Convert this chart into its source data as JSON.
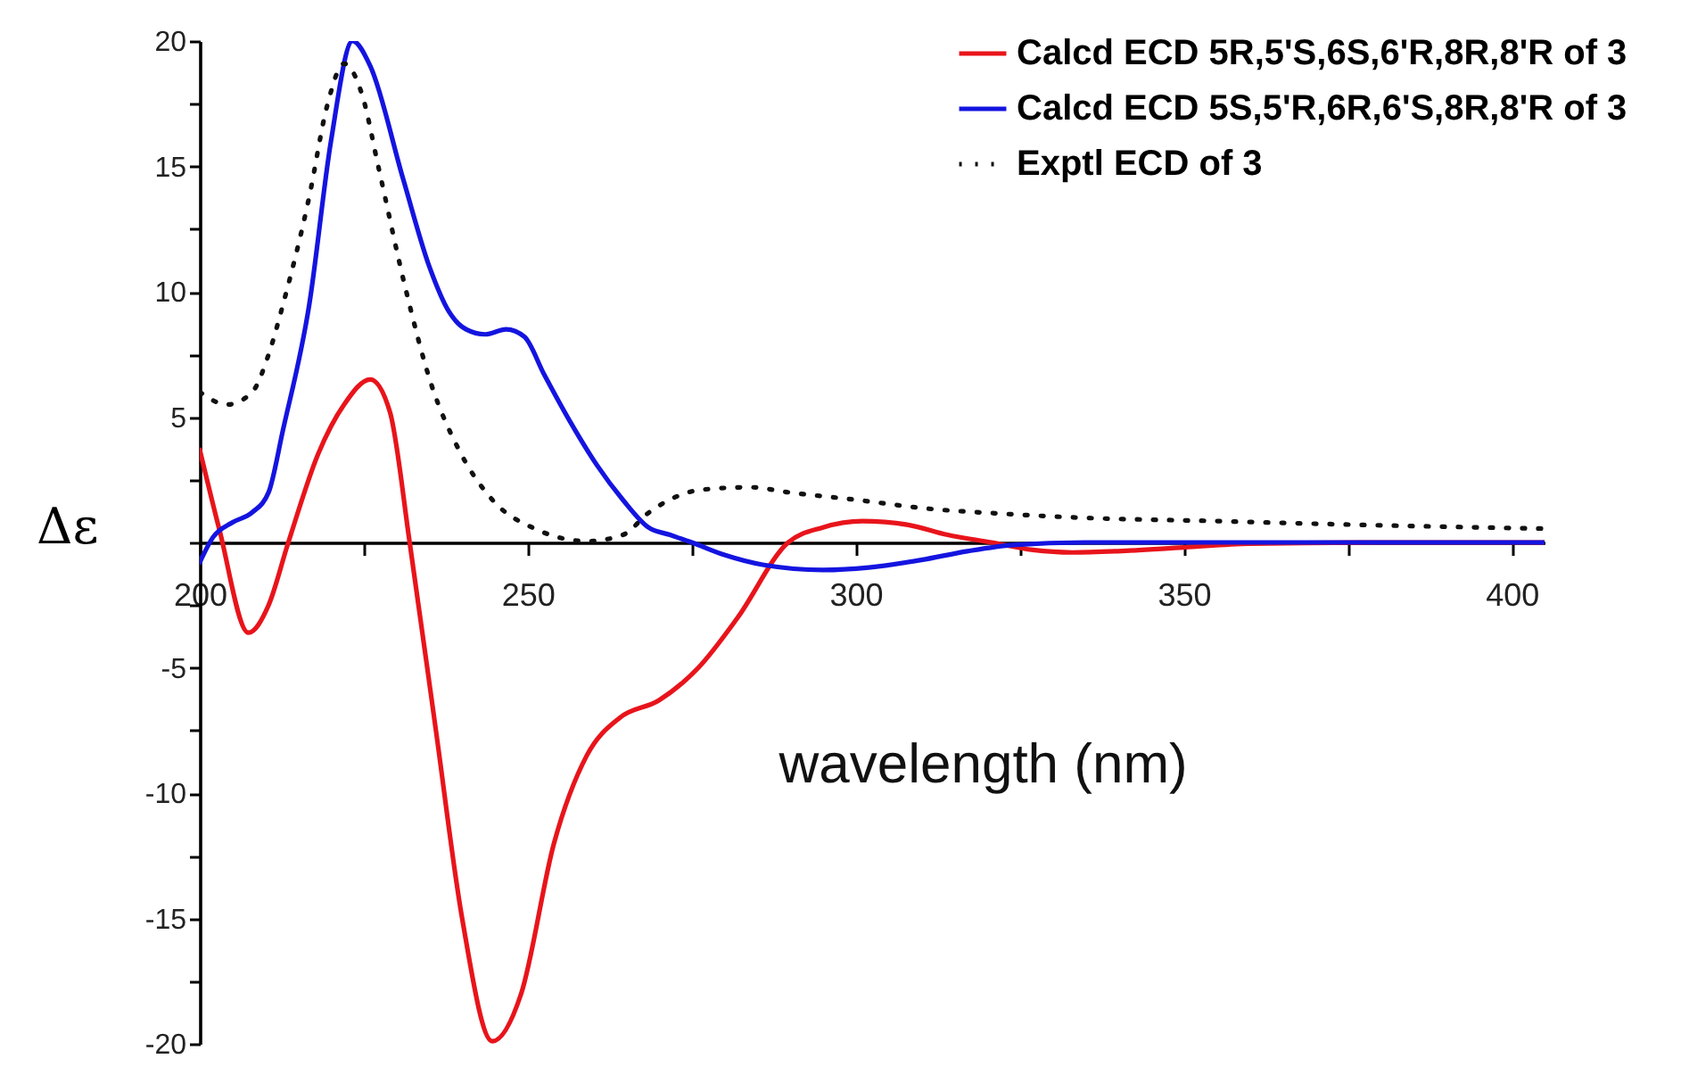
{
  "chart_data": {
    "type": "line",
    "xlabel": "wavelength (nm)",
    "ylabel": "Δε",
    "xlim": [
      200,
      405
    ],
    "ylim": [
      -20,
      20
    ],
    "xticks": [
      200,
      {
        "value": 225,
        "label": null
      },
      250,
      {
        "value": 275,
        "label": null
      },
      300,
      {
        "value": 325,
        "label": null
      },
      350,
      {
        "value": 375,
        "label": null
      },
      400
    ],
    "yticks": [
      -20,
      {
        "value": -17.5,
        "label": null
      },
      -15,
      {
        "value": -12.5,
        "label": null
      },
      -10,
      {
        "value": -7.5,
        "label": null
      },
      -5,
      {
        "value": -2.5,
        "label": null
      },
      {
        "value": 0,
        "label": null
      },
      {
        "value": 2.5,
        "label": null
      },
      5,
      {
        "value": 7.5,
        "label": null
      },
      10,
      {
        "value": 12.5,
        "label": null
      },
      15,
      {
        "value": 17.5,
        "label": null
      },
      20
    ],
    "legend": "top right",
    "grid": false,
    "marker": "none",
    "series": [
      {
        "name": "Calcd ECD 5R,5'S,6S,6'R,8R,8'R of 3",
        "color": "#e8141b",
        "line_style": "solid",
        "x": [
          200,
          203,
          207.4,
          210.5,
          213.5,
          218,
          222,
          226,
          229,
          232,
          236,
          240,
          244.6,
          249,
          254,
          259,
          264,
          270,
          276,
          282,
          289.7,
          295,
          301,
          308,
          314,
          320.7,
          327,
          333,
          340,
          350,
          360,
          380,
          405
        ],
        "values": [
          3.7,
          0.5,
          -3.6,
          -2.5,
          0,
          3.5,
          5.5,
          6.5,
          5.2,
          0,
          -7.5,
          -15,
          -19.9,
          -18,
          -12,
          -8.5,
          -7,
          -6.3,
          -5,
          -3,
          0,
          0.6,
          0.85,
          0.7,
          0.3,
          0,
          -0.3,
          -0.4,
          -0.35,
          -0.2,
          -0.05,
          0,
          0
        ]
      },
      {
        "name": "Calcd ECD 5S,5'R,6R,6'S,8R,8'R of 3",
        "color": "#1414e0",
        "line_style": "solid",
        "x": [
          200,
          202,
          205,
          208,
          210.5,
          212.7,
          216.7,
          220,
          223.3,
          226,
          231,
          235,
          238,
          240.6,
          243.5,
          246.7,
          249.5,
          252.5,
          256.5,
          260.5,
          264.5,
          268.4,
          271.7,
          275,
          280,
          286,
          295,
          302,
          310,
          317,
          324,
          335,
          350,
          375,
          405
        ],
        "values": [
          -0.8,
          0.2,
          0.8,
          1.2,
          2,
          4.5,
          9.5,
          16,
          20,
          19,
          14.5,
          11,
          9.2,
          8.5,
          8.3,
          8.5,
          8.2,
          6.7,
          4.8,
          3.1,
          1.7,
          0.6,
          0.3,
          0,
          -0.5,
          -0.9,
          -1.1,
          -1,
          -0.7,
          -0.35,
          -0.1,
          0,
          0,
          0,
          0
        ]
      },
      {
        "name": "Exptl ECD of 3",
        "color": "#111111",
        "line_style": "dotted",
        "x": [
          200,
          204.2,
          208,
          210.5,
          212.7,
          216.7,
          219.4,
          222,
          224.7,
          227.3,
          231.3,
          235.3,
          239.3,
          244.6,
          251.5,
          259,
          264.5,
          268.5,
          272.4,
          276.4,
          284,
          289.7,
          300,
          310.9,
          322,
          333,
          355,
          377,
          405
        ],
        "values": [
          6,
          5.5,
          6,
          7.5,
          9.5,
          13.8,
          17.4,
          19.1,
          17.9,
          14.9,
          10.2,
          6.3,
          3.8,
          1.7,
          0.5,
          0.05,
          0.3,
          1.2,
          1.8,
          2.1,
          2.2,
          2,
          1.7,
          1.35,
          1.15,
          1,
          0.85,
          0.7,
          0.55
        ]
      }
    ]
  }
}
